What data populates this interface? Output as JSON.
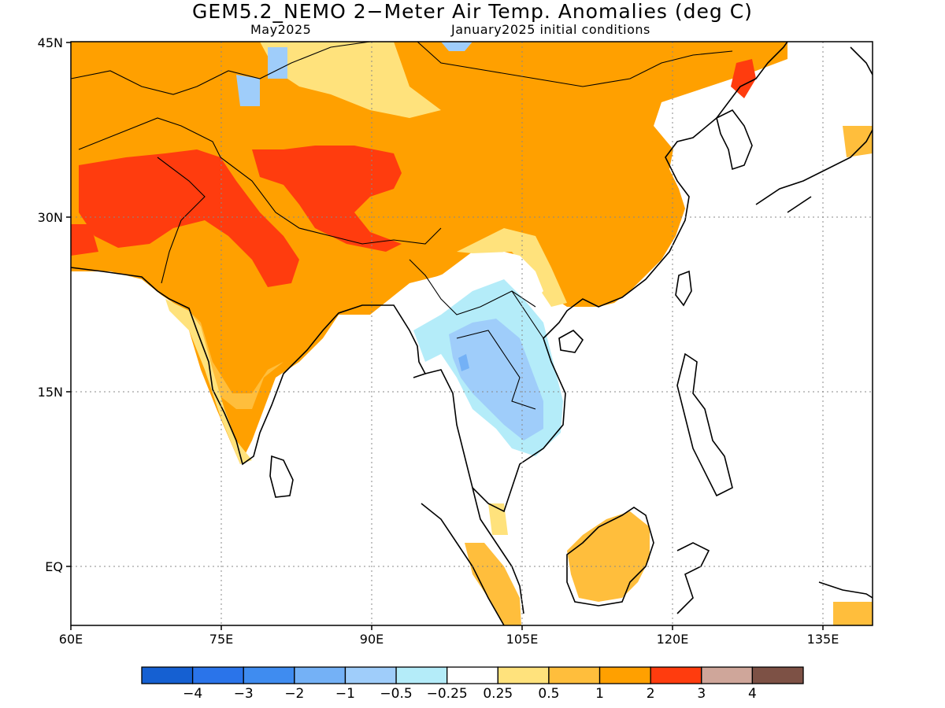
{
  "header": {
    "title": "GEM5.2_NEMO 2−Meter Air Temp. Anomalies (deg C)",
    "subtitle_left": "May2025",
    "subtitle_right": "January2025 initial conditions"
  },
  "axes": {
    "lat_labels": [
      "45N",
      "30N",
      "15N",
      "EQ"
    ],
    "lon_labels": [
      "60E",
      "75E",
      "90E",
      "105E",
      "120E",
      "135E"
    ]
  },
  "colorbar": {
    "colors": [
      "#1560d2",
      "#2a74ea",
      "#3f8cf0",
      "#74b1f6",
      "#9fcdfa",
      "#b4ecf9",
      "#ffffff",
      "#ffe27c",
      "#ffbe3c",
      "#ffa000",
      "#ff3c0e",
      "#cfa69a",
      "#7d5145"
    ],
    "labels": [
      "−4",
      "−3",
      "−2",
      "−1",
      "−0.5",
      "−0.25",
      "0.25",
      "0.5",
      "1",
      "2",
      "3",
      "4"
    ]
  },
  "map_data": {
    "extent": {
      "lon": [
        60,
        140
      ],
      "lat": [
        -5,
        45
      ]
    },
    "dominant_regions": [
      {
        "region": "Northern India / Pakistan / Tibet",
        "anomaly_range": "2 to 3"
      },
      {
        "region": "China / Mongolia / Central Asia",
        "anomaly_range": "1 to 2"
      },
      {
        "region": "Thailand / Laos / Cambodia",
        "anomaly_range": "-1 to -0.25"
      },
      {
        "region": "Borneo / Malay Peninsula",
        "anomaly_range": "0.25 to 1"
      }
    ]
  }
}
